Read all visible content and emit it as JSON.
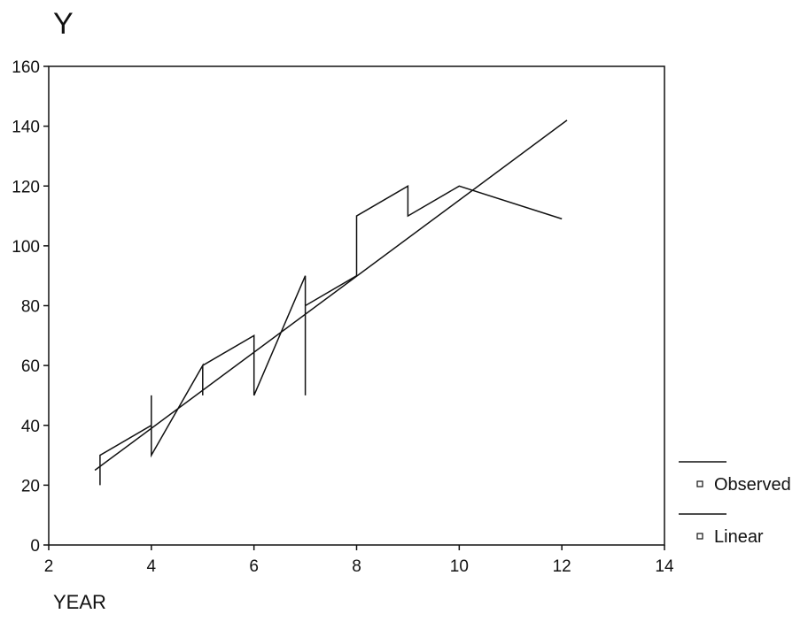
{
  "chart_data": {
    "type": "line",
    "ylabel": "Y",
    "xlabel": "YEAR",
    "xlim": [
      2,
      14
    ],
    "ylim": [
      0,
      160
    ],
    "xticks": [
      "2",
      "4",
      "6",
      "8",
      "10",
      "12",
      "14"
    ],
    "yticks": [
      "0",
      "20",
      "40",
      "60",
      "80",
      "100",
      "120",
      "140",
      "160"
    ],
    "grid": false,
    "legend_position": "right",
    "series": [
      {
        "name": "Observed",
        "color": "#111111",
        "x": [
          3,
          3,
          3,
          4,
          4,
          4,
          5,
          5,
          5,
          6,
          6,
          6,
          7,
          7,
          7,
          8,
          8,
          8,
          9,
          9,
          9,
          10,
          10,
          10,
          12
        ],
        "y": [
          20,
          30,
          30,
          40,
          50,
          30,
          60,
          50,
          60,
          70,
          50,
          50,
          90,
          50,
          80,
          90,
          110,
          110,
          120,
          110,
          110,
          120,
          120,
          120,
          109
        ]
      },
      {
        "name": "Linear",
        "color": "#111111",
        "x": [
          2.9,
          12.1
        ],
        "y": [
          25,
          142
        ]
      }
    ]
  }
}
